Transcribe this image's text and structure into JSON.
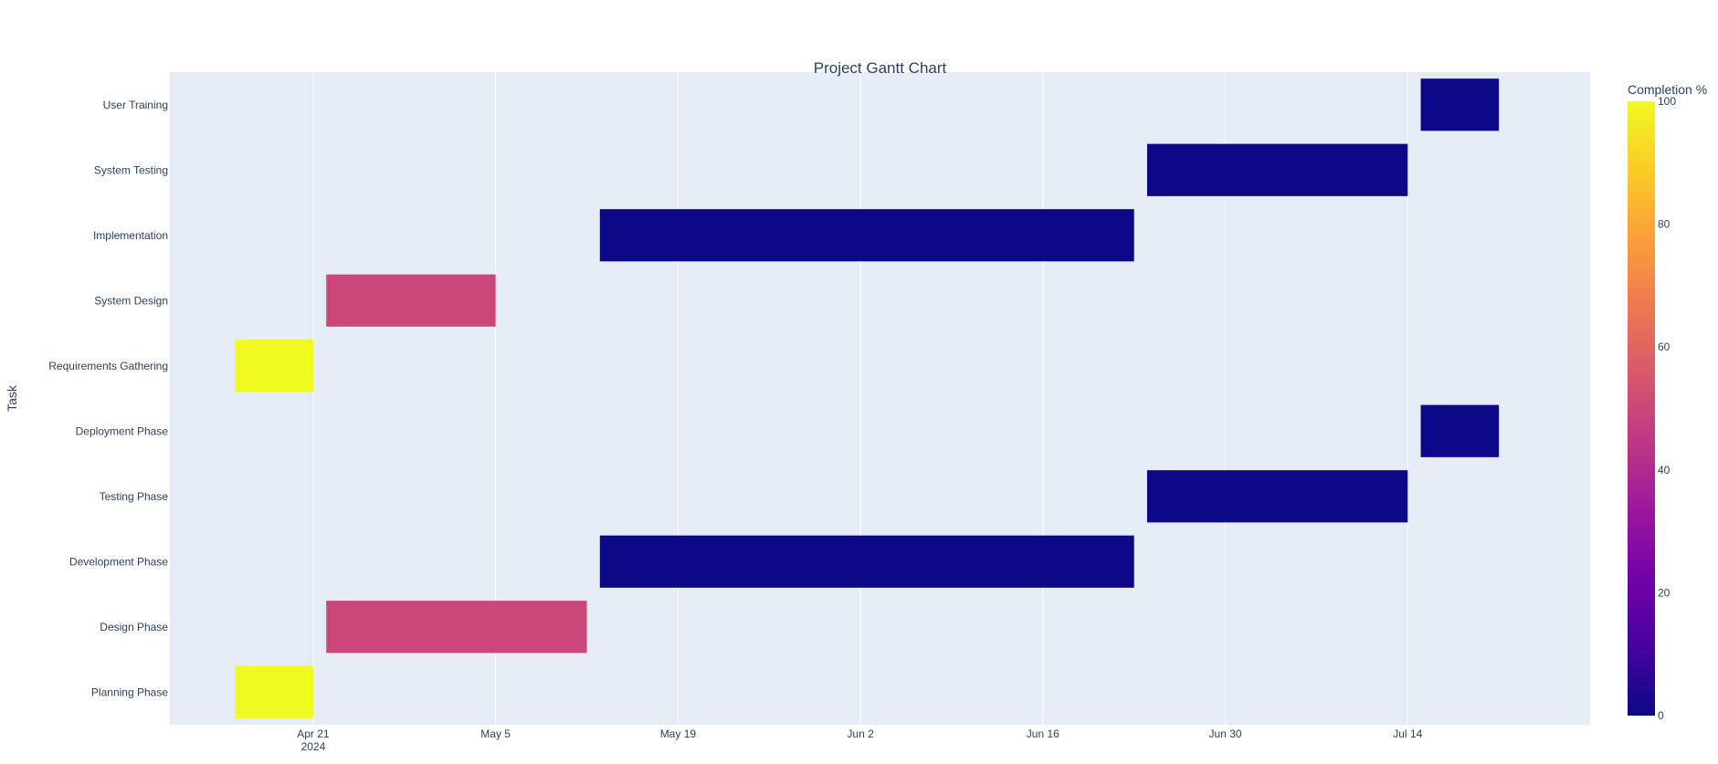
{
  "chart_data": {
    "type": "gantt",
    "title": "Project Gantt Chart",
    "xlabel": "",
    "ylabel": "Task",
    "x_range": [
      "2024-04-10",
      "2024-07-28"
    ],
    "x_ticks": [
      {
        "date": "2024-04-21",
        "label": "Apr 21",
        "sublabel": "2024"
      },
      {
        "date": "2024-05-05",
        "label": "May 5",
        "sublabel": ""
      },
      {
        "date": "2024-05-19",
        "label": "May 19",
        "sublabel": ""
      },
      {
        "date": "2024-06-02",
        "label": "Jun 2",
        "sublabel": ""
      },
      {
        "date": "2024-06-16",
        "label": "Jun 16",
        "sublabel": ""
      },
      {
        "date": "2024-06-30",
        "label": "Jun 30",
        "sublabel": ""
      },
      {
        "date": "2024-07-14",
        "label": "Jul 14",
        "sublabel": ""
      }
    ],
    "categories": [
      "Planning Phase",
      "Design Phase",
      "Development Phase",
      "Testing Phase",
      "Deployment Phase",
      "Requirements Gathering",
      "System Design",
      "Implementation",
      "System Testing",
      "User Training"
    ],
    "tasks": [
      {
        "task": "Planning Phase",
        "start": "2024-04-15",
        "end": "2024-04-21",
        "completion": 100
      },
      {
        "task": "Design Phase",
        "start": "2024-04-22",
        "end": "2024-05-12",
        "completion": 50
      },
      {
        "task": "Development Phase",
        "start": "2024-05-13",
        "end": "2024-06-23",
        "completion": 0
      },
      {
        "task": "Testing Phase",
        "start": "2024-06-24",
        "end": "2024-07-14",
        "completion": 0
      },
      {
        "task": "Deployment Phase",
        "start": "2024-07-15",
        "end": "2024-07-21",
        "completion": 0
      },
      {
        "task": "Requirements Gathering",
        "start": "2024-04-15",
        "end": "2024-04-21",
        "completion": 100
      },
      {
        "task": "System Design",
        "start": "2024-04-22",
        "end": "2024-05-05",
        "completion": 50
      },
      {
        "task": "Implementation",
        "start": "2024-05-13",
        "end": "2024-06-23",
        "completion": 0
      },
      {
        "task": "System Testing",
        "start": "2024-06-24",
        "end": "2024-07-14",
        "completion": 0
      },
      {
        "task": "User Training",
        "start": "2024-07-15",
        "end": "2024-07-21",
        "completion": 0
      }
    ],
    "colorbar": {
      "title": "Completion %",
      "range": [
        0,
        100
      ],
      "ticks": [
        0,
        20,
        40,
        60,
        80,
        100
      ],
      "colorscale": [
        "#0d0887",
        "#46039f",
        "#7201a8",
        "#9c179e",
        "#bd3786",
        "#d8576b",
        "#ed7953",
        "#fb9f3a",
        "#fdca26",
        "#f0f921"
      ]
    },
    "colors": {
      "plot_background": "#e5ecf6",
      "grid": "#ffffff",
      "text": "#2a3f5f"
    },
    "grid": true
  }
}
